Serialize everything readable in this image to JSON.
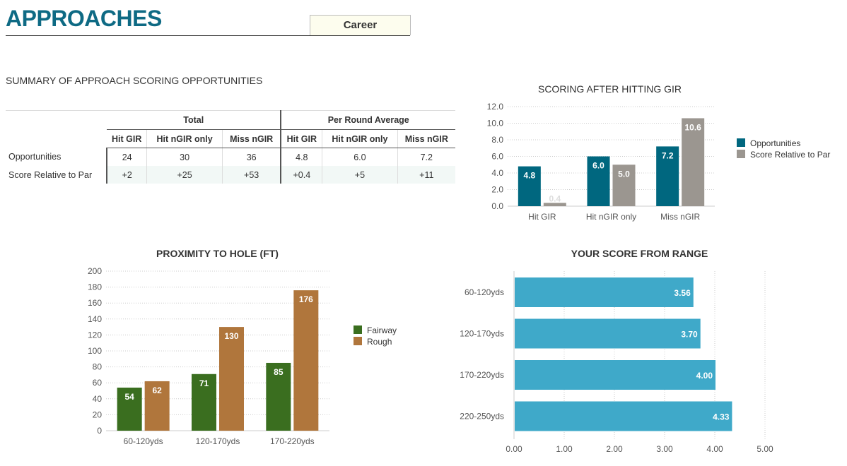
{
  "header": {
    "title": "APPROACHES",
    "period_tab": "Career"
  },
  "summary": {
    "title": "SUMMARY OF APPROACH SCORING OPPORTUNITIES",
    "groups": [
      "Total",
      "Per Round Average"
    ],
    "columns": [
      "Hit GIR",
      "Hit nGIR only",
      "Miss nGIR",
      "Hit GIR",
      "Hit nGIR only",
      "Miss nGIR"
    ],
    "rows": [
      {
        "label": "Opportunities",
        "values": [
          "24",
          "30",
          "36",
          "4.8",
          "6.0",
          "7.2"
        ]
      },
      {
        "label": "Score Relative to Par",
        "values": [
          "+2",
          "+25",
          "+53",
          "+0.4",
          "+5",
          "+11"
        ]
      }
    ]
  },
  "chart_data": [
    {
      "type": "bar",
      "title": "SCORING AFTER HITTING GIR",
      "categories": [
        "Hit GIR",
        "Hit nGIR only",
        "Miss nGIR"
      ],
      "series": [
        {
          "name": "Opportunities",
          "values": [
            4.8,
            6.0,
            7.2
          ],
          "color": "#00677f"
        },
        {
          "name": "Score Relative to Par",
          "values": [
            0.4,
            5.0,
            10.6
          ],
          "color": "#9b9690"
        }
      ],
      "data_labels": [
        [
          "4.8",
          "6.0",
          "7.2"
        ],
        [
          "0.4",
          "5.0",
          "10.6"
        ]
      ],
      "yticks": [
        "0.0",
        "2.0",
        "4.0",
        "6.0",
        "8.0",
        "10.0",
        "12.0"
      ],
      "ylim": [
        0,
        12
      ],
      "grid": true,
      "legend": "right"
    },
    {
      "type": "bar",
      "title": "PROXIMITY TO HOLE (FT)",
      "categories": [
        "60-120yds",
        "120-170yds",
        "170-220yds"
      ],
      "series": [
        {
          "name": "Fairway",
          "values": [
            54,
            71,
            85
          ],
          "color": "#3a6e1f"
        },
        {
          "name": "Rough",
          "values": [
            62,
            130,
            176
          ],
          "color": "#b0763c"
        }
      ],
      "data_labels": [
        [
          "54",
          "71",
          "85"
        ],
        [
          "62",
          "130",
          "176"
        ]
      ],
      "yticks": [
        "0",
        "20",
        "40",
        "60",
        "80",
        "100",
        "120",
        "140",
        "160",
        "180",
        "200"
      ],
      "ylim": [
        0,
        200
      ],
      "grid": true,
      "legend": "right"
    },
    {
      "type": "bar",
      "orientation": "horizontal",
      "title": "YOUR SCORE FROM RANGE",
      "categories": [
        "60-120yds",
        "120-170yds",
        "170-220yds",
        "220-250yds"
      ],
      "values": [
        3.56,
        3.7,
        4.0,
        4.33
      ],
      "data_labels": [
        "3.56",
        "3.70",
        "4.00",
        "4.33"
      ],
      "color": "#3fa9c9",
      "xticks": [
        "0.00",
        "1.00",
        "2.00",
        "3.00",
        "4.00",
        "5.00"
      ],
      "xlim": [
        0,
        5
      ],
      "grid": true
    }
  ]
}
